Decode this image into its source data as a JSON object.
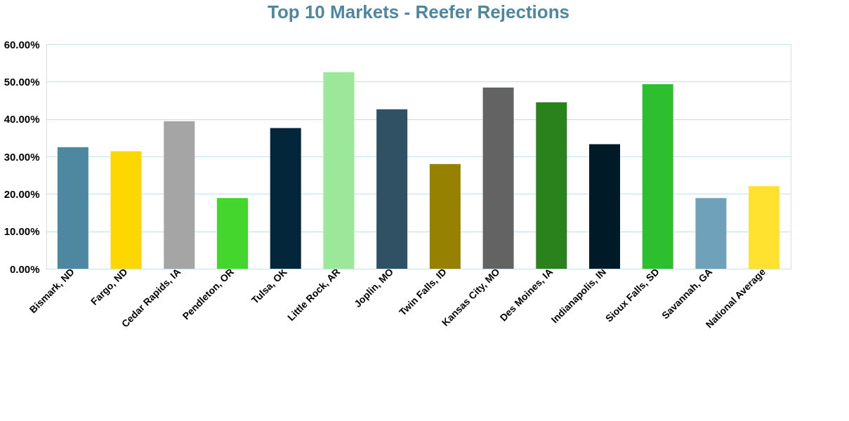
{
  "chart_data": {
    "type": "bar",
    "title": "Top 10 Markets - Reefer Rejections",
    "categories": [
      "Bismark, ND",
      "Fargo, ND",
      "Cedar Rapids, IA",
      "Pendleton, OR",
      "Tulsa, OK",
      "Little Rock, AR",
      "Joplin, MO",
      "Twin Falls, ID",
      "Kansas City, MO",
      "Des Moines, IA",
      "Indianapolis, IN",
      "Sioux Falls, SD",
      "Savannah, GA",
      "National Average"
    ],
    "values": [
      32.5,
      31.4,
      39.4,
      18.9,
      37.6,
      52.5,
      42.6,
      28.0,
      48.4,
      44.5,
      33.3,
      49.3,
      18.9,
      22.1
    ],
    "colors": [
      "#4e87a0",
      "#ffd700",
      "#a5a5a5",
      "#44d62c",
      "#03263b",
      "#9be89b",
      "#2f5163",
      "#978200",
      "#636363",
      "#2a821c",
      "#001a28",
      "#2ebf2e",
      "#6fa2ba",
      "#ffe12f"
    ],
    "ylim": [
      0,
      60
    ],
    "yticks": [
      {
        "value": 0,
        "label": "0.00%"
      },
      {
        "value": 10,
        "label": "10.00%"
      },
      {
        "value": 20,
        "label": "20.00%"
      },
      {
        "value": 30,
        "label": "30.00%"
      },
      {
        "value": 40,
        "label": "40.00%"
      },
      {
        "value": 50,
        "label": "50.00%"
      },
      {
        "value": 60,
        "label": "60.00%"
      }
    ],
    "grid": "y",
    "legend": false
  }
}
